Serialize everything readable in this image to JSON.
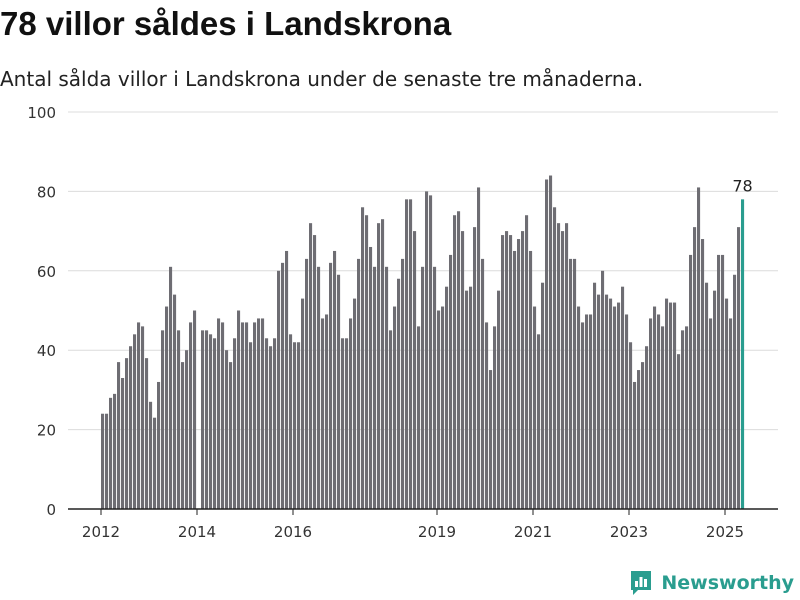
{
  "title": "78 villor såldes i Landskrona",
  "subtitle": "Antal sålda villor i Landskrona under de senaste tre månaderna.",
  "brand": {
    "name": "Newsworthy",
    "icon": "newsworthy-logo-icon"
  },
  "colors": {
    "bar": "#6e6d73",
    "highlight": "#2a9d8f",
    "grid": "#dcdcdc",
    "axis": "#222222"
  },
  "chart_data": {
    "type": "bar",
    "xlabel": "",
    "ylabel": "",
    "ylim": [
      0,
      100
    ],
    "yticks": [
      0,
      20,
      40,
      60,
      80,
      100
    ],
    "xticks": [
      "2012",
      "2014",
      "2016",
      "2019",
      "2021",
      "2023",
      "2025"
    ],
    "grid": true,
    "start_month": "2012-01",
    "highlight_label": "78",
    "values": [
      24,
      24,
      28,
      29,
      37,
      33,
      38,
      41,
      44,
      47,
      46,
      38,
      27,
      23,
      32,
      45,
      51,
      61,
      54,
      45,
      37,
      40,
      47,
      50,
      0,
      45,
      45,
      44,
      43,
      48,
      47,
      40,
      37,
      43,
      50,
      47,
      47,
      42,
      47,
      48,
      48,
      43,
      41,
      43,
      60,
      62,
      65,
      44,
      42,
      42,
      53,
      63,
      72,
      69,
      61,
      48,
      49,
      62,
      65,
      59,
      43,
      43,
      48,
      53,
      63,
      76,
      74,
      66,
      61,
      72,
      73,
      61,
      45,
      51,
      58,
      63,
      78,
      78,
      70,
      46,
      61,
      80,
      79,
      61,
      50,
      51,
      56,
      64,
      74,
      75,
      70,
      55,
      56,
      71,
      81,
      63,
      47,
      35,
      46,
      55,
      69,
      70,
      69,
      65,
      68,
      70,
      74,
      65,
      51,
      44,
      57,
      83,
      84,
      76,
      72,
      70,
      72,
      63,
      63,
      51,
      47,
      49,
      49,
      57,
      54,
      60,
      54,
      53,
      51,
      52,
      56,
      49,
      42,
      32,
      35,
      37,
      41,
      48,
      51,
      49,
      46,
      53,
      52,
      52,
      39,
      45,
      46,
      64,
      71,
      81,
      68,
      57,
      48,
      55,
      64,
      64,
      53,
      48,
      59,
      71,
      78
    ]
  }
}
